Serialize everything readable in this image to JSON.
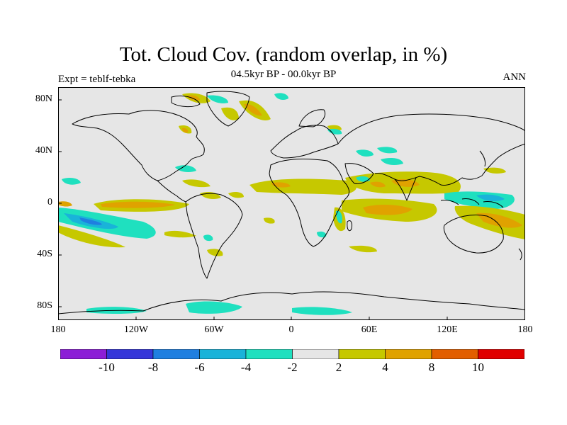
{
  "title": "Tot. Cloud Cov. (random overlap, in %)",
  "subtitle": "04.5kyr BP - 00.0kyr BP",
  "experiment_label": "Expt = teblf-tebka",
  "season_label": "ANN",
  "map": {
    "projection": "cylindrical-equidistant",
    "ocean_land_background": "#e6e6e6",
    "coastline_color": "#000000",
    "y_ticks": [
      "80N",
      "40N",
      "0",
      "40S",
      "80S"
    ],
    "x_ticks": [
      "180",
      "120W",
      "60W",
      "0",
      "60E",
      "120E",
      "180"
    ]
  },
  "colorbar": {
    "colors": [
      "#8c1ed6",
      "#3536d9",
      "#1f7fe0",
      "#19b3d9",
      "#1fe0bf",
      "#e6e6e6",
      "#c6c800",
      "#e0a200",
      "#e25e00",
      "#e00000"
    ],
    "labels": [
      "-10",
      "-8",
      "-6",
      "-4",
      "-2",
      "2",
      "4",
      "8",
      "10"
    ]
  }
}
